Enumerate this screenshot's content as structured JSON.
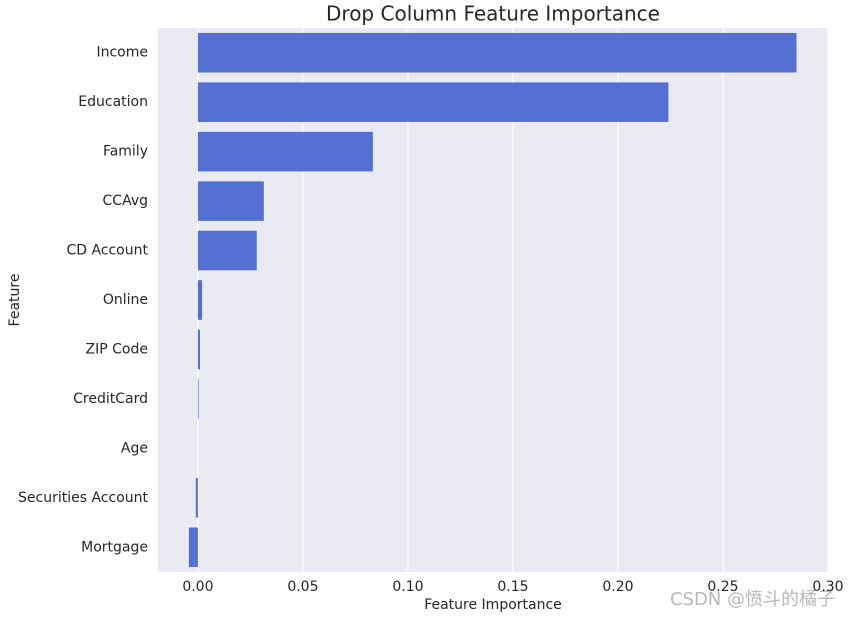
{
  "chart_data": {
    "type": "barh",
    "title": "Drop Column Feature Importance",
    "x_label": "Feature Importance",
    "y_label": "Feature",
    "categories": [
      "Income",
      "Education",
      "Family",
      "CCAvg",
      "CD Account",
      "Online",
      "ZIP Code",
      "CreditCard",
      "Age",
      "Securities Account",
      "Mortgage"
    ],
    "values": [
      0.285,
      0.224,
      0.0833,
      0.0314,
      0.028,
      0.002,
      0.001,
      0.0003,
      0,
      -0.001,
      -0.0043
    ],
    "color": "#5470d2",
    "xlim": [
      -0.019,
      0.3
    ],
    "xticks": [
      {
        "value": 0,
        "label": "0.00"
      },
      {
        "value": 0.05,
        "label": "0.05"
      },
      {
        "value": 0.1,
        "label": "0.10"
      },
      {
        "value": 0.15,
        "label": "0.15"
      },
      {
        "value": 0.2,
        "label": "0.20"
      },
      {
        "value": 0.25,
        "label": "0.25"
      },
      {
        "value": 0.3,
        "label": "0.30"
      }
    ],
    "grid": true,
    "watermark": "CSDN @愤斗的橘子"
  }
}
